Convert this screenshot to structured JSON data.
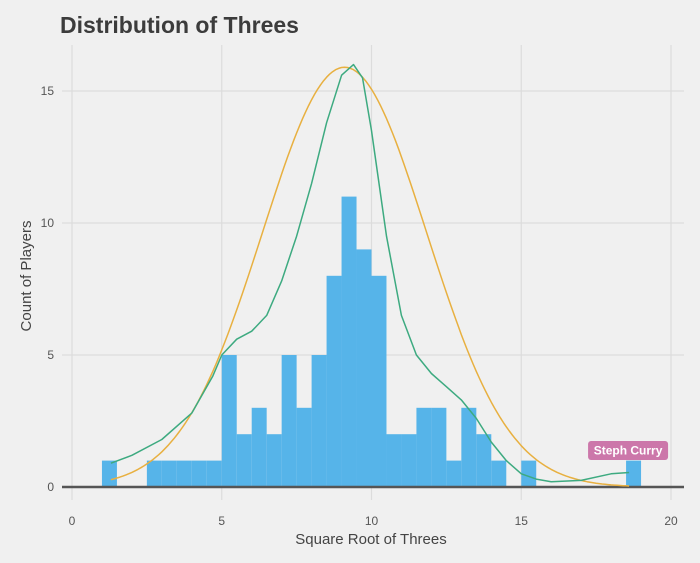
{
  "chart_data": {
    "type": "bar",
    "title": "Distribution of Threes",
    "xlabel": "Square Root of Threes",
    "ylabel": "Count of Players",
    "xlim": [
      -0.5,
      20.4
    ],
    "ylim": [
      -0.5,
      16.8
    ],
    "xticks": [
      0,
      5,
      10,
      15,
      20
    ],
    "yticks": [
      0,
      5,
      10,
      15
    ],
    "grid": true,
    "bin_width": 0.5,
    "bars": [
      {
        "x": 1.0,
        "count": 1
      },
      {
        "x": 2.5,
        "count": 1
      },
      {
        "x": 3.0,
        "count": 1
      },
      {
        "x": 3.5,
        "count": 1
      },
      {
        "x": 4.0,
        "count": 1
      },
      {
        "x": 4.5,
        "count": 1
      },
      {
        "x": 5.0,
        "count": 5
      },
      {
        "x": 5.5,
        "count": 2
      },
      {
        "x": 6.0,
        "count": 3
      },
      {
        "x": 6.5,
        "count": 2
      },
      {
        "x": 7.0,
        "count": 5
      },
      {
        "x": 7.5,
        "count": 3
      },
      {
        "x": 8.0,
        "count": 5
      },
      {
        "x": 8.5,
        "count": 8
      },
      {
        "x": 9.0,
        "count": 11
      },
      {
        "x": 9.5,
        "count": 9
      },
      {
        "x": 10.0,
        "count": 8
      },
      {
        "x": 10.5,
        "count": 2
      },
      {
        "x": 11.0,
        "count": 2
      },
      {
        "x": 11.5,
        "count": 3
      },
      {
        "x": 12.0,
        "count": 3
      },
      {
        "x": 12.5,
        "count": 1
      },
      {
        "x": 13.0,
        "count": 3
      },
      {
        "x": 13.5,
        "count": 2
      },
      {
        "x": 14.0,
        "count": 1
      },
      {
        "x": 15.0,
        "count": 1
      },
      {
        "x": 18.5,
        "count": 1
      }
    ],
    "bar_color": "#56b4e9",
    "curves": [
      {
        "kind": "normal",
        "color": "#e8b040",
        "mean": 9.1,
        "sd": 2.74,
        "peak": 15.9,
        "x_range": [
          1.3,
          18.6
        ]
      },
      {
        "kind": "density",
        "color": "#3daa80",
        "points": [
          [
            1.3,
            0.9
          ],
          [
            2,
            1.2
          ],
          [
            3,
            1.8
          ],
          [
            4,
            2.8
          ],
          [
            4.7,
            4.2
          ],
          [
            5,
            5
          ],
          [
            5.5,
            5.6
          ],
          [
            6,
            5.9
          ],
          [
            6.5,
            6.5
          ],
          [
            7,
            7.8
          ],
          [
            7.5,
            9.5
          ],
          [
            8,
            11.5
          ],
          [
            8.5,
            13.8
          ],
          [
            9,
            15.6
          ],
          [
            9.4,
            16
          ],
          [
            9.7,
            15.5
          ],
          [
            10,
            13.5
          ],
          [
            10.5,
            9.5
          ],
          [
            11,
            6.5
          ],
          [
            11.5,
            5
          ],
          [
            12,
            4.3
          ],
          [
            12.5,
            3.8
          ],
          [
            13,
            3.3
          ],
          [
            13.5,
            2.6
          ],
          [
            14,
            1.7
          ],
          [
            14.5,
            1
          ],
          [
            15,
            0.5
          ],
          [
            15.5,
            0.3
          ],
          [
            16,
            0.2
          ],
          [
            17,
            0.25
          ],
          [
            18,
            0.5
          ],
          [
            18.6,
            0.55
          ]
        ]
      }
    ],
    "annotations": [
      {
        "text": "Steph Curry",
        "x": 18.5,
        "y": 1.4,
        "color": "#cc77aa"
      }
    ]
  }
}
